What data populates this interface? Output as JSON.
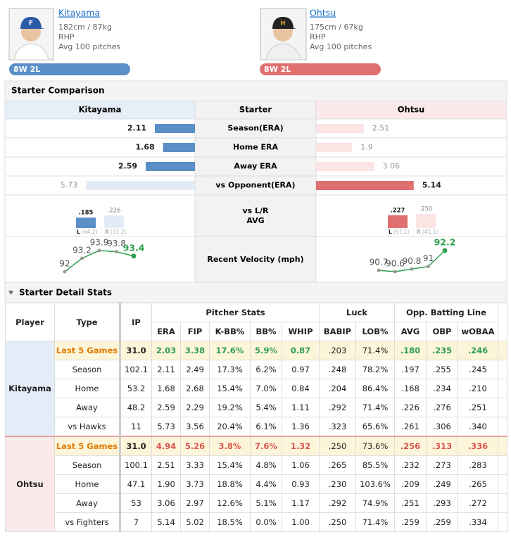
{
  "pitchers": [
    {
      "name": "Kitayama",
      "body": "182cm / 87kg",
      "throws": "RHP",
      "avg_pitches": "Avg 100 pitches",
      "record": "8W 2L",
      "color": "#5b8fc7",
      "light": "#e3ecf6"
    },
    {
      "name": "Ohtsu",
      "body": "175cm / 67kg",
      "throws": "RHP",
      "avg_pitches": "Avg 100 pitches",
      "record": "8W 2L",
      "color": "#e07070",
      "light": "#fbe4e4"
    }
  ],
  "comparison": {
    "title": "Starter Comparison",
    "header": {
      "left": "Kitayama",
      "center": "Starter",
      "right": "Ohtsu"
    },
    "rows": [
      {
        "label": "Season(ERA)",
        "left": 2.11,
        "right": 2.51
      },
      {
        "label": "Home ERA",
        "left": 1.68,
        "right": 1.9
      },
      {
        "label": "Away ERA",
        "left": 2.59,
        "right": 3.06
      },
      {
        "label": "vs Opponent(ERA)",
        "left": 5.73,
        "right": 5.14
      }
    ],
    "vs_lr": {
      "label": [
        "vs L/R",
        "AVG"
      ],
      "left": {
        "categories": [
          "L",
          "R"
        ],
        "values": [
          0.185,
          0.226
        ],
        "value_labels": [
          ".185",
          ".226"
        ],
        "pa": [
          "(64.2)",
          "(37.2)"
        ]
      },
      "right": {
        "categories": [
          "L",
          "R"
        ],
        "values": [
          0.227,
          0.25
        ],
        "value_labels": [
          ".227",
          ".250"
        ],
        "pa": [
          "(57.1)",
          "(41.1)"
        ]
      }
    },
    "velocity": {
      "label": "Recent Velocity (mph)",
      "color": "#2e9e4f",
      "left": [
        92,
        93.2,
        93.9,
        93.8,
        93.4
      ],
      "right": [
        90.7,
        90.6,
        90.8,
        91,
        92.2
      ]
    }
  },
  "detail": {
    "title": "Starter Detail Stats",
    "head": [
      "Player",
      "Type",
      "IP"
    ],
    "groups": [
      {
        "label": "Pitcher Stats",
        "span": 5
      },
      {
        "label": "Luck",
        "span": 2
      },
      {
        "label": "Opp. Batting Line",
        "span": 3
      }
    ],
    "columns": [
      "ERA",
      "FIP",
      "K-BB%",
      "BB%",
      "WHIP",
      "BABIP",
      "LOB%",
      "AVG",
      "OBP",
      "wOBAA"
    ],
    "sections": [
      {
        "player": "Kitayama",
        "tint": "#e5eef8",
        "color": "#2e9e4f",
        "rows": [
          [
            "Last 5 Games",
            "31.0",
            "2.03",
            "3.38",
            "17.6%",
            "5.9%",
            "0.87",
            ".203",
            "71.4%",
            ".180",
            ".235",
            ".246"
          ],
          [
            "Season",
            "102.1",
            "2.11",
            "2.49",
            "17.3%",
            "6.2%",
            "0.97",
            ".248",
            "78.2%",
            ".197",
            ".255",
            ".245"
          ],
          [
            "Home",
            "53.2",
            "1.68",
            "2.68",
            "15.4%",
            "7.0%",
            "0.84",
            ".204",
            "86.4%",
            ".168",
            ".234",
            ".210"
          ],
          [
            "Away",
            "48.2",
            "2.59",
            "2.29",
            "19.2%",
            "5.4%",
            "1.11",
            ".292",
            "71.4%",
            ".226",
            ".276",
            ".251"
          ],
          [
            "vs Hawks",
            "11",
            "5.73",
            "3.56",
            "20.4%",
            "6.1%",
            "1.36",
            ".323",
            "65.6%",
            ".261",
            ".306",
            ".340"
          ]
        ]
      },
      {
        "player": "Ohtsu",
        "tint": "#fbe9ea",
        "color": "#d9534f",
        "rows": [
          [
            "Last 5 Games",
            "31.0",
            "4.94",
            "5.26",
            "3.8%",
            "7.6%",
            "1.32",
            ".250",
            "73.6%",
            ".256",
            ".313",
            ".336"
          ],
          [
            "Season",
            "100.1",
            "2.51",
            "3.33",
            "15.4%",
            "4.8%",
            "1.06",
            ".265",
            "85.5%",
            ".232",
            ".273",
            ".283"
          ],
          [
            "Home",
            "47.1",
            "1.90",
            "3.73",
            "18.8%",
            "4.4%",
            "0.93",
            ".230",
            "103.6%",
            ".209",
            ".249",
            ".265"
          ],
          [
            "Away",
            "53",
            "3.06",
            "2.97",
            "12.6%",
            "5.1%",
            "1.17",
            ".292",
            "74.9%",
            ".251",
            ".293",
            ".272"
          ],
          [
            "vs Fighters",
            "7",
            "5.14",
            "5.02",
            "18.5%",
            "0.0%",
            "1.00",
            ".250",
            "71.4%",
            ".259",
            ".259",
            ".334"
          ]
        ]
      }
    ]
  }
}
